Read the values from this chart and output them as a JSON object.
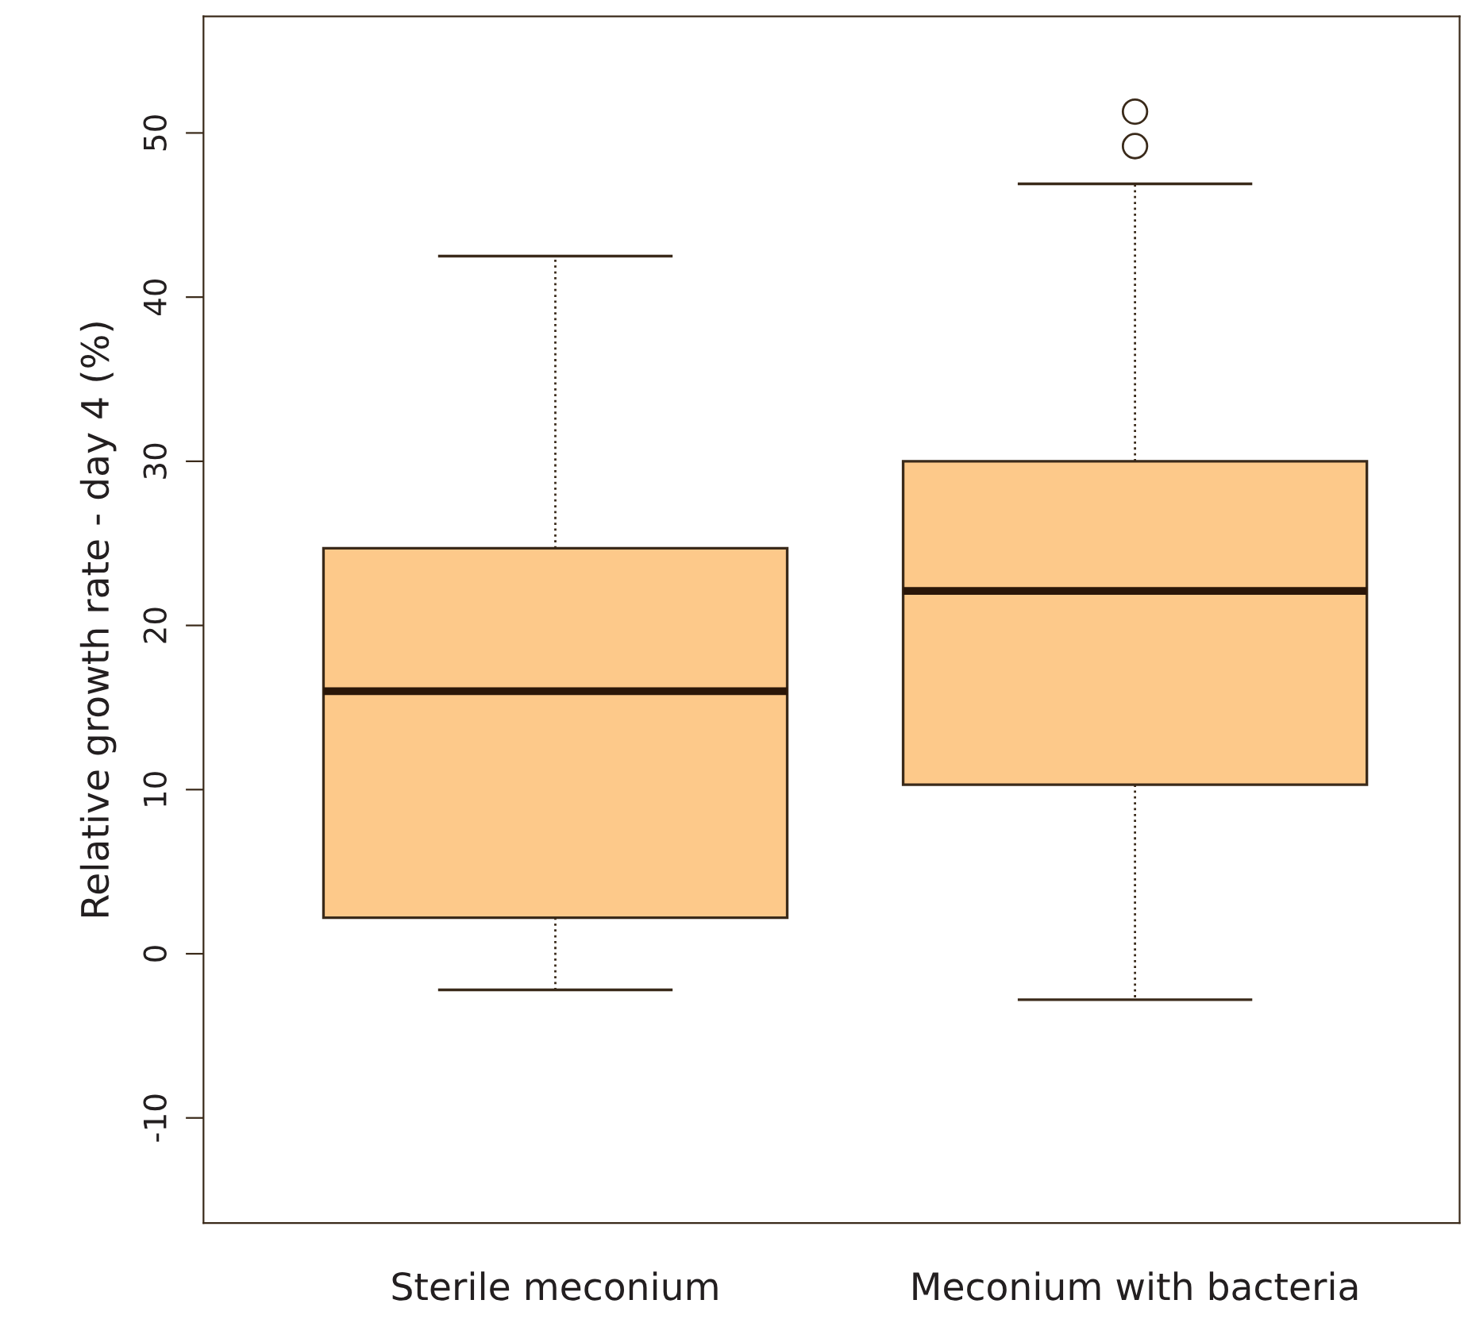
{
  "chart_data": {
    "type": "box",
    "ylabel": "Relative growth rate - day 4 (%)",
    "categories": [
      "Sterile meconium",
      "Meconium with bacteria"
    ],
    "color": "#fdc98a",
    "boxes": [
      {
        "low": -2.2,
        "q1": 2.2,
        "median": 16.0,
        "q3": 24.7,
        "high": 42.5
      },
      {
        "low": -2.8,
        "q1": 10.3,
        "median": 22.1,
        "q3": 30.0,
        "high": 46.9,
        "outliers": [
          49.2,
          51.3
        ]
      }
    ],
    "ylim": [
      -16.4,
      57.1
    ],
    "yticks": [
      {
        "value": -10,
        "label": "-10"
      },
      0,
      10,
      20,
      30,
      40,
      50
    ],
    "line_style": "dotted",
    "grid": false
  }
}
